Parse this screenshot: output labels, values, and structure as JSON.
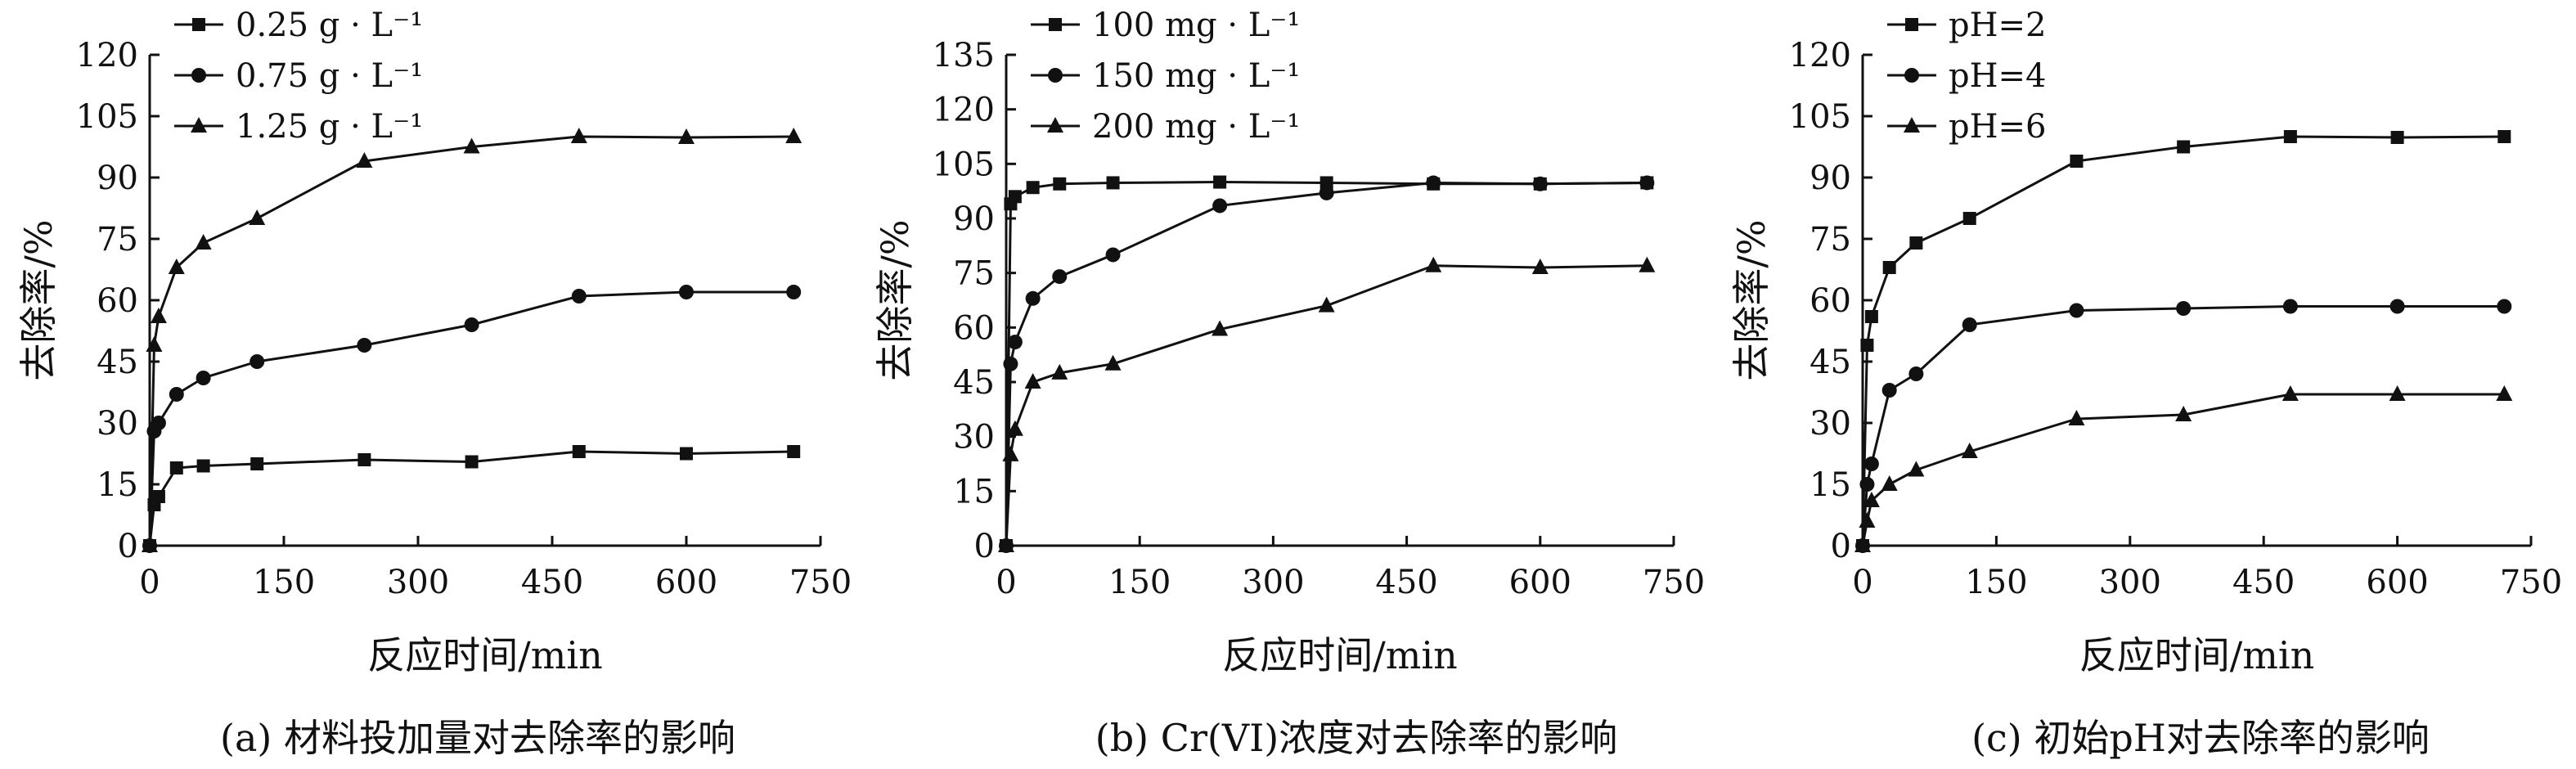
{
  "chart_data": [
    {
      "type": "line",
      "caption": "(a) 材料投加量对去除率的影响",
      "xlabel": "反应时间/min",
      "ylabel": "去除率/%",
      "xlim": [
        0,
        750
      ],
      "ylim": [
        0,
        120
      ],
      "xticks": [
        0,
        150,
        300,
        450,
        600,
        750
      ],
      "yticks": [
        0,
        15,
        30,
        45,
        60,
        75,
        90,
        105,
        120
      ],
      "legend": "top-left",
      "series": [
        {
          "name": "0.25 g · L⁻¹",
          "marker": "square",
          "x": [
            0,
            5,
            10,
            30,
            60,
            120,
            240,
            360,
            480,
            600,
            720
          ],
          "y": [
            0,
            10,
            12,
            19,
            19.5,
            20,
            21,
            20.5,
            23,
            22.5,
            23
          ]
        },
        {
          "name": "0.75 g · L⁻¹",
          "marker": "circle",
          "x": [
            0,
            5,
            10,
            30,
            60,
            120,
            240,
            360,
            480,
            600,
            720
          ],
          "y": [
            0,
            28,
            30,
            37,
            41,
            45,
            49,
            54,
            61,
            62,
            62
          ]
        },
        {
          "name": "1.25 g · L⁻¹",
          "marker": "triangle",
          "x": [
            0,
            5,
            10,
            30,
            60,
            120,
            240,
            360,
            480,
            600,
            720
          ],
          "y": [
            0,
            49,
            56,
            68,
            74,
            80,
            94,
            97.5,
            100,
            99.8,
            100
          ]
        }
      ]
    },
    {
      "type": "line",
      "caption": "(b) Cr(VI)浓度对去除率的影响",
      "xlabel": "反应时间/min",
      "ylabel": "去除率/%",
      "xlim": [
        0,
        750
      ],
      "ylim": [
        0,
        135
      ],
      "xticks": [
        0,
        150,
        300,
        450,
        600,
        750
      ],
      "yticks": [
        0,
        15,
        30,
        45,
        60,
        75,
        90,
        105,
        120,
        135
      ],
      "legend": "top-left",
      "series": [
        {
          "name": "100 mg · L⁻¹",
          "marker": "square",
          "x": [
            0,
            5,
            10,
            30,
            60,
            120,
            240,
            360,
            480,
            600,
            720
          ],
          "y": [
            0,
            94,
            96,
            98.5,
            99.5,
            99.8,
            100,
            99.8,
            99.5,
            99.5,
            99.8
          ]
        },
        {
          "name": "150 mg · L⁻¹",
          "marker": "circle",
          "x": [
            0,
            5,
            10,
            30,
            60,
            120,
            240,
            360,
            480,
            600,
            720
          ],
          "y": [
            0,
            50,
            56,
            68,
            74,
            80,
            93.5,
            97,
            99.8,
            99.5,
            99.8
          ]
        },
        {
          "name": "200 mg · L⁻¹",
          "marker": "triangle",
          "x": [
            0,
            5,
            10,
            30,
            60,
            120,
            240,
            360,
            480,
            600,
            720
          ],
          "y": [
            0,
            25,
            32,
            45,
            47.5,
            50,
            59.5,
            66,
            77,
            76.5,
            77
          ]
        }
      ]
    },
    {
      "type": "line",
      "caption": "(c) 初始pH对去除率的影响",
      "xlabel": "反应时间/min",
      "ylabel": "去除率/%",
      "xlim": [
        0,
        750
      ],
      "ylim": [
        0,
        120
      ],
      "xticks": [
        0,
        150,
        300,
        450,
        600,
        750
      ],
      "yticks": [
        0,
        15,
        30,
        45,
        60,
        75,
        90,
        105,
        120
      ],
      "legend": "top-left",
      "series": [
        {
          "name": "pH=2",
          "marker": "square",
          "x": [
            0,
            5,
            10,
            30,
            60,
            120,
            240,
            360,
            480,
            600,
            720
          ],
          "y": [
            0,
            49,
            56,
            68,
            74,
            80,
            94,
            97.5,
            100,
            99.8,
            100
          ]
        },
        {
          "name": "pH=4",
          "marker": "circle",
          "x": [
            0,
            5,
            10,
            30,
            60,
            120,
            240,
            360,
            480,
            600,
            720
          ],
          "y": [
            0,
            15,
            20,
            38,
            42,
            54,
            57.5,
            58,
            58.5,
            58.5,
            58.5
          ]
        },
        {
          "name": "pH=6",
          "marker": "triangle",
          "x": [
            0,
            5,
            10,
            30,
            60,
            120,
            240,
            360,
            480,
            600,
            720
          ],
          "y": [
            0,
            6,
            11,
            15,
            18.5,
            23,
            31,
            32,
            37,
            37,
            37
          ]
        }
      ]
    }
  ]
}
